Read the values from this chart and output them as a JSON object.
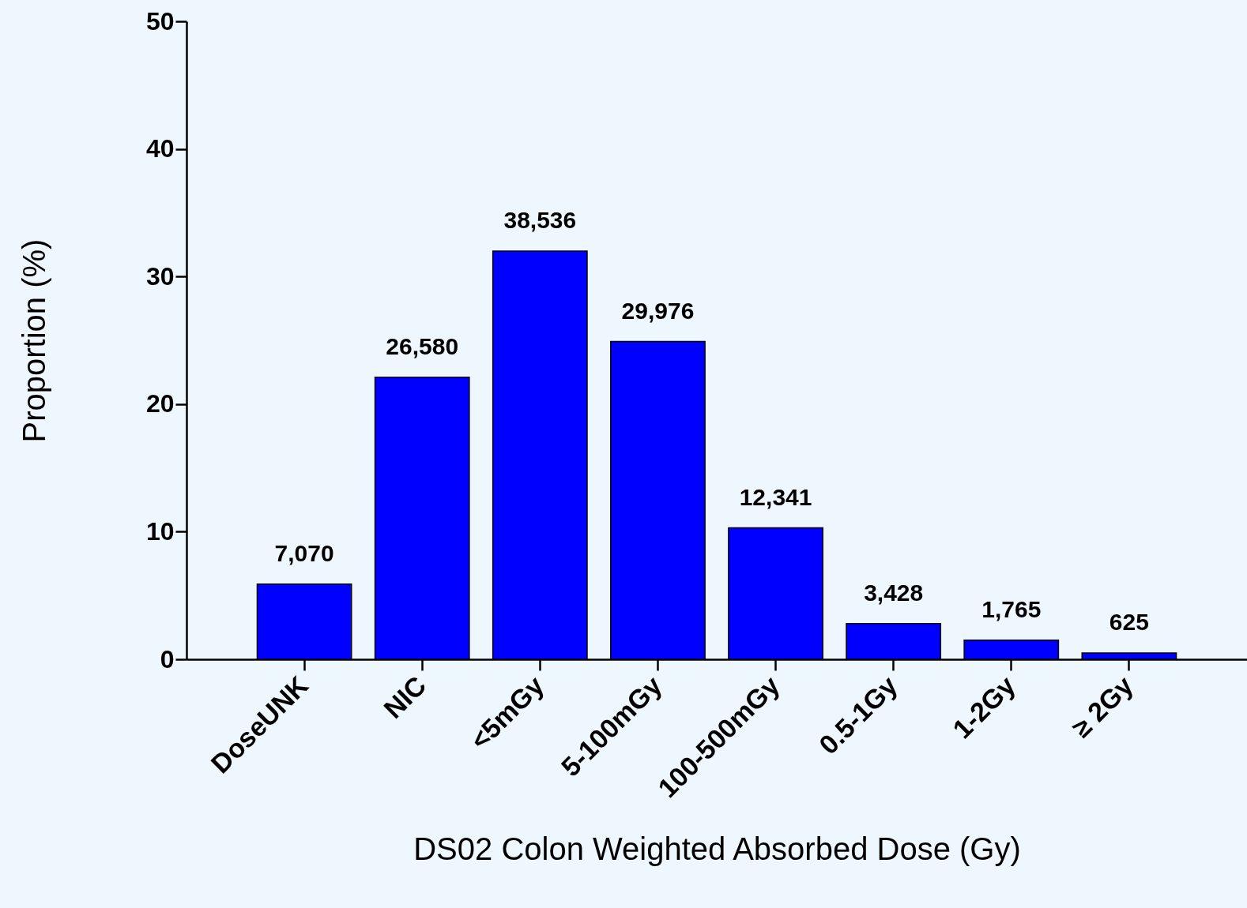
{
  "chart_data": {
    "type": "bar",
    "xlabel": "DS02 Colon Weighted Absorbed Dose (Gy)",
    "ylabel": "Proportion  (%)",
    "categories": [
      "DoseUNK",
      "NIC",
      "<5mGy",
      "5-100mGy",
      "100-500mGy",
      "0.5-1Gy",
      "1-2Gy",
      "≥ 2Gy"
    ],
    "values": [
      5.9,
      22.1,
      32.0,
      24.9,
      10.3,
      2.8,
      1.5,
      0.5
    ],
    "color": "#0000ff",
    "ylim": [
      0,
      50
    ],
    "yticks": [
      0,
      10,
      20,
      30,
      40,
      50
    ],
    "annotations": [
      {
        "text": "7,070",
        "x": "DoseUNK",
        "y": 5.9
      },
      {
        "text": "26,580",
        "x": "NIC",
        "y": 22.1
      },
      {
        "text": "38,536",
        "x": "<5mGy",
        "y": 32.0
      },
      {
        "text": "29,976",
        "x": "5-100mGy",
        "y": 24.9
      },
      {
        "text": "12,341",
        "x": "100-500mGy",
        "y": 10.3
      },
      {
        "text": "3,428",
        "x": "0.5-1Gy",
        "y": 2.8
      },
      {
        "text": "1,765",
        "x": "1-2Gy",
        "y": 1.5
      },
      {
        "text": "625",
        "x": "≥ 2Gy",
        "y": 0.5
      }
    ]
  }
}
